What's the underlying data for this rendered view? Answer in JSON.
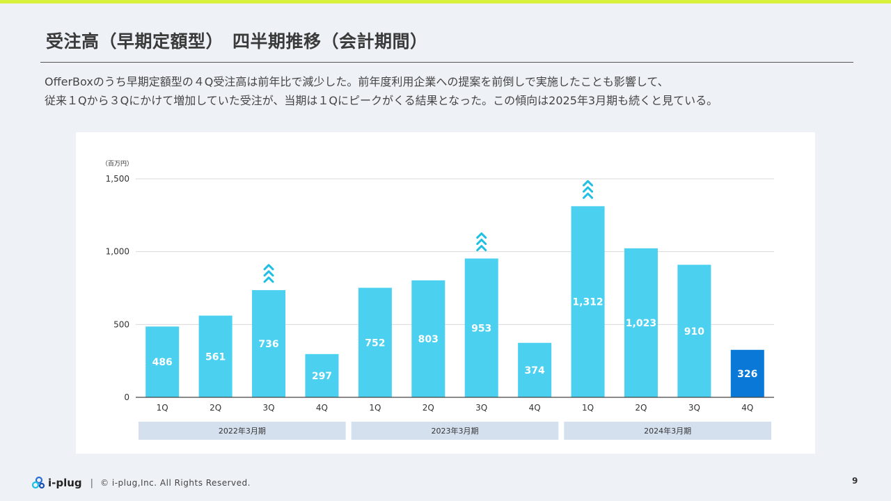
{
  "slide": {
    "title": "受注高（早期定額型）　四半期推移（会計期間）",
    "description_lines": [
      "OfferBoxのうち早期定額型の４Q受注高は前年比で減少した。前年度利用企業への提案を前倒しで実施したことも影響して、",
      "従来１Qから３Qにかけて増加していた受注が、当期は１Qにピークがくる結果となった。この傾向は2025年3月期も続くと見ている。"
    ],
    "page_number": "9"
  },
  "footer": {
    "logo_text": "i-plug",
    "separator": "|",
    "copyright": "© i-plug,Inc.  All Rights Reserved."
  },
  "colors": {
    "accent_bar": "#d7f03c",
    "bar_default": "#4bd0ef",
    "bar_highlight": "#0a78d6",
    "arrow": "#1fbfe4",
    "group_band": "#d5e0ef"
  },
  "chart_data": {
    "type": "bar",
    "unit_label": "（百万円）",
    "ylim": [
      0,
      1500
    ],
    "yticks": [
      0,
      500,
      1000,
      1500
    ],
    "ytick_labels": [
      "0",
      "500",
      "1,000",
      "1,500"
    ],
    "grid": true,
    "categories": [
      "1Q",
      "2Q",
      "3Q",
      "4Q",
      "1Q",
      "2Q",
      "3Q",
      "4Q",
      "1Q",
      "2Q",
      "3Q",
      "4Q"
    ],
    "values": [
      486,
      561,
      736,
      297,
      752,
      803,
      953,
      374,
      1312,
      1023,
      910,
      326
    ],
    "value_labels": [
      "486",
      "561",
      "736",
      "297",
      "752",
      "803",
      "953",
      "374",
      "1,312",
      "1,023",
      "910",
      "326"
    ],
    "highlighted_index": 11,
    "peak_arrow_indices": [
      2,
      6,
      8
    ],
    "groups": [
      {
        "label": "2022年3月期",
        "start": 0,
        "end": 3
      },
      {
        "label": "2023年3月期",
        "start": 4,
        "end": 7
      },
      {
        "label": "2024年3月期",
        "start": 8,
        "end": 11
      }
    ]
  }
}
